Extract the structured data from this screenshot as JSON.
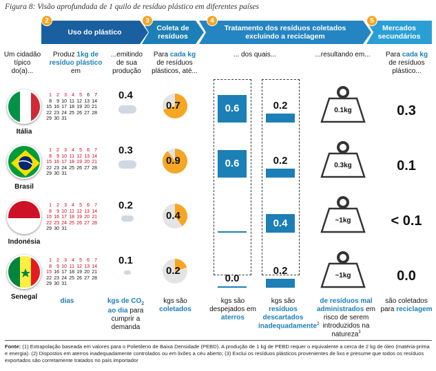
{
  "title": "Figura 8: Visão aprofundada de 1 quilo de resíduo plástico em diferentes países",
  "steps": [
    {
      "num": "2",
      "label": "Uso do plástico"
    },
    {
      "num": "3",
      "label": "Coleta de resíduos"
    },
    {
      "num": "4",
      "label": "Tratamento dos resíduos coletados excluindo a reciclagem"
    },
    {
      "num": "5",
      "label": "Mercados secundários"
    }
  ],
  "colors": {
    "dark_blue": "#1a5fa0",
    "mid_blue": "#1c7fb6",
    "light_blue": "#2a9fd6",
    "orange": "#f5a623",
    "red": "#d0021b"
  },
  "col_heads": {
    "citizen": "Um cidadão típico do(a)...",
    "produces_prefix": "Produz ",
    "produces_blue": "1kg de resíduo plástico",
    "produces_suffix": " em",
    "emitting": "...emitindo de sua produção",
    "collects_prefix": "Para ",
    "collects_blue": "cada kg",
    "collects_suffix": " de resíduos plásticos, até...",
    "of_which": "... dos quais...",
    "resulting": "...resultando em...",
    "secondary_prefix": "Para ",
    "secondary_blue": "cada kg",
    "secondary_suffix": " de resíduos plástico..."
  },
  "calendar": {
    "rows": [
      [
        "",
        "1",
        "2",
        "3",
        "4",
        "5",
        "6",
        "7"
      ],
      [
        "",
        "8",
        "9",
        "10",
        "11",
        "12",
        "13",
        "14"
      ],
      [
        "",
        "15",
        "16",
        "17",
        "18",
        "19",
        "20",
        "21"
      ],
      [
        "",
        "22",
        "23",
        "24",
        "25",
        "26",
        "27",
        "28"
      ],
      [
        "",
        "29",
        "30",
        "31",
        "",
        "",
        "",
        ""
      ]
    ]
  },
  "chart_data": {
    "type": "table",
    "countries": [
      {
        "name": "Itália",
        "days": 5,
        "co2": "0.4",
        "collected": "0.7",
        "collected_frac": 0.7,
        "landfill": "0.6",
        "landfill_val": 0.6,
        "mismanaged": "0.2",
        "mismanaged_val": 0.2,
        "nature": "0.1kg",
        "recycled": "0.3",
        "cloud": "large"
      },
      {
        "name": "Brasil",
        "days": 21,
        "co2": "0.3",
        "collected": "0.9",
        "collected_frac": 0.9,
        "landfill": "0.6",
        "landfill_val": 0.6,
        "mismanaged": "0.2",
        "mismanaged_val": 0.2,
        "nature": "0.3kg",
        "recycled": "0.1",
        "cloud": "large"
      },
      {
        "name": "Indonésia",
        "days": 28,
        "co2": "0.2",
        "collected": "0.4",
        "collected_frac": 0.4,
        "landfill": "",
        "landfill_val": 0,
        "mismanaged": "0.4",
        "mismanaged_val": 0.4,
        "nature": "~1kg",
        "recycled": "< 0.1",
        "cloud": "medium"
      },
      {
        "name": "Senegal",
        "days": 15,
        "co2": "0.1",
        "collected": "0.2",
        "collected_frac": 0.2,
        "landfill": "0.0",
        "landfill_val": 0.0,
        "mismanaged": "0.2",
        "mismanaged_val": 0.2,
        "nature": "~1kg",
        "recycled": "0.0",
        "cloud": "small"
      }
    ]
  },
  "footers": {
    "days": "dias",
    "co2_a": "kgs de CO",
    "co2_sub": "2",
    "co2_b": " ao dia",
    "co2_c": " para cumprir a demanda",
    "collected_a": "kgs são ",
    "collected_b": "coletados",
    "landfill_a": "kgs são despejados em ",
    "landfill_b": "aterros",
    "mismanaged_a": "kgs são ",
    "mismanaged_b": "resíduos descartados inadequadamente",
    "mismanaged_sup": "2",
    "nature_a": "de resíduos mal administrados",
    "nature_b": " em risco de serem introduzidos na natureza",
    "nature_sup": "3",
    "recycled_a": "são coletados para ",
    "recycled_b": "reciclagem"
  },
  "notes": {
    "label": "Fonte: ",
    "text": "(1) Extrapolação baseada em valores para o Polietileno de Baixa Densidade (PEBD). A produção de 1 kg de PEBD requer o equivalente a cerca de 2 kg de óleo (matéria-prima e energia). (2) Dispostos em aterros inadequadamente controlados ou em lixões a céu aberto; (3) Exclui os resíduos plásticos provenientes de lixo e presume que todos os resíduos exportados são corretamente tratados no país importador"
  }
}
